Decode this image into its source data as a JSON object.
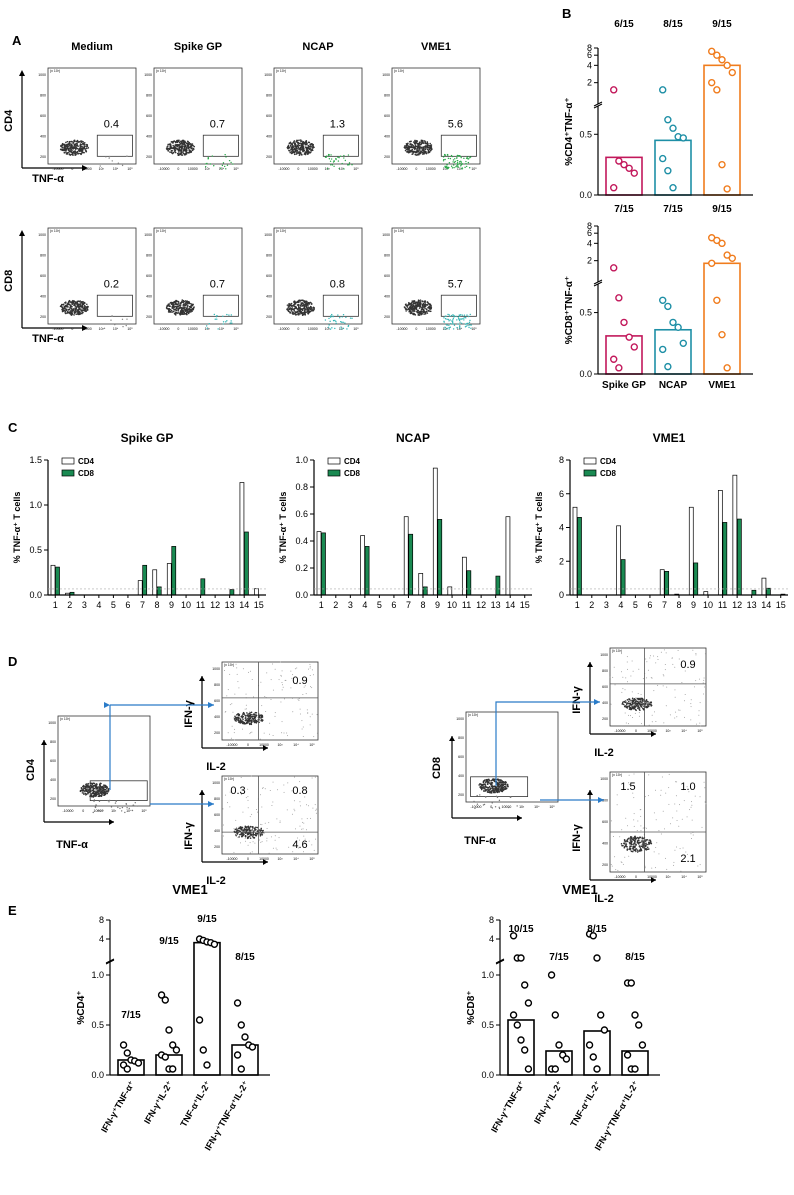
{
  "panel_letters": {
    "a": "A",
    "b": "B",
    "c": "C",
    "d": "D",
    "e": "E"
  },
  "colors": {
    "spike": "#C2185B",
    "ncap": "#1E8FA6",
    "vme1": "#F07C1D",
    "cd8_bar": "#1A8A52",
    "cd4_bar": "#ffffff",
    "gate": "#333333",
    "green_dots": "#2BA84A",
    "teal_dots": "#33B5B5",
    "arrow": "#2A7BC8"
  },
  "panel_a": {
    "conditions": [
      "Medium",
      "Spike GP",
      "NCAP",
      "VME1"
    ],
    "row_cd4": {
      "ylabel": "CD4",
      "xlabel": "TNF-α",
      "values": [
        "0.4",
        "0.7",
        "1.3",
        "5.6"
      ]
    },
    "row_cd8": {
      "ylabel": "CD8",
      "xlabel": "TNF-α",
      "values": [
        "0.2",
        "0.7",
        "0.8",
        "5.7"
      ]
    },
    "x_ticks": [
      "-10000",
      "0",
      "10000",
      "10³",
      "10⁴",
      "10⁵"
    ],
    "y_ticks_cd4": [
      "1000",
      "800",
      "600",
      "400",
      "200"
    ],
    "y_ticks_cd8": [
      "1000",
      "800",
      "600",
      "400",
      "200"
    ],
    "y_exp": "(x 10³)"
  },
  "chart_data": [
    {
      "type": "scatter",
      "panel": "B-top",
      "ylabel": "%CD4⁺TNF-α⁺",
      "categories": [
        "Spike GP",
        "NCAP",
        "VME1"
      ],
      "fractions": [
        "6/15",
        "8/15",
        "9/15"
      ],
      "bar_heights": [
        0.31,
        0.45,
        4.0
      ],
      "points": [
        [
          1.5,
          0.28,
          0.25,
          0.22,
          0.18,
          0.06
        ],
        [
          1.5,
          0.62,
          0.55,
          0.48,
          0.47,
          0.3,
          0.2,
          0.06
        ],
        [
          7,
          6,
          5,
          4,
          3,
          2,
          1.5,
          0.25,
          0.05
        ]
      ],
      "y_ticks": [
        "0.0",
        "0.5",
        "1.0",
        "2",
        "4",
        "6",
        "8"
      ],
      "ylim_lower": [
        0,
        1.0
      ],
      "ylim_upper": [
        1,
        8
      ]
    },
    {
      "type": "scatter",
      "panel": "B-bottom",
      "ylabel": "%CD8⁺TNF-α⁺",
      "categories": [
        "Spike GP",
        "NCAP",
        "VME1"
      ],
      "fractions": [
        "7/15",
        "7/15",
        "9/15"
      ],
      "bar_heights": [
        0.31,
        0.36,
        1.8
      ],
      "points": [
        [
          1.5,
          0.62,
          0.42,
          0.3,
          0.22,
          0.12,
          0.05
        ],
        [
          0.6,
          0.55,
          0.42,
          0.38,
          0.25,
          0.2,
          0.06
        ],
        [
          5,
          4.5,
          4,
          2.5,
          2.2,
          1.8,
          0.6,
          0.32,
          0.05
        ]
      ],
      "y_ticks": [
        "0.0",
        "0.5",
        "1.0",
        "2",
        "4",
        "6",
        "8"
      ],
      "ylim_lower": [
        0,
        1.0
      ],
      "ylim_upper": [
        1,
        8
      ]
    },
    {
      "type": "bar",
      "panel": "C-SpikeGP",
      "title": "Spike GP",
      "ylabel": "% TNF-α⁺ T cells",
      "categories": [
        "1",
        "2",
        "3",
        "4",
        "5",
        "6",
        "7",
        "8",
        "9",
        "10",
        "11",
        "12",
        "13",
        "14",
        "15"
      ],
      "series": [
        {
          "name": "CD4",
          "values": [
            0.33,
            0.02,
            0,
            0,
            0,
            0,
            0.16,
            0.28,
            0.35,
            0,
            0,
            0,
            0,
            1.25,
            0.07
          ]
        },
        {
          "name": "CD8",
          "values": [
            0.31,
            0.03,
            0,
            0,
            0,
            0,
            0.33,
            0.09,
            0.54,
            0,
            0.18,
            0,
            0.06,
            0.7,
            0
          ]
        }
      ],
      "y_ticks": [
        "0.0",
        "0.5",
        "1.0",
        "1.5"
      ],
      "ylim": [
        0,
        1.5
      ]
    },
    {
      "type": "bar",
      "panel": "C-NCAP",
      "title": "NCAP",
      "ylabel": "% TNF-α⁺ T cells",
      "categories": [
        "1",
        "2",
        "3",
        "4",
        "5",
        "6",
        "7",
        "8",
        "9",
        "10",
        "11",
        "12",
        "13",
        "14",
        "15"
      ],
      "series": [
        {
          "name": "CD4",
          "values": [
            0.47,
            0,
            0,
            0.44,
            0,
            0,
            0.58,
            0.16,
            0.94,
            0.06,
            0.28,
            0,
            0,
            0.58,
            0
          ]
        },
        {
          "name": "CD8",
          "values": [
            0.46,
            0,
            0,
            0.36,
            0,
            0,
            0.45,
            0.06,
            0.56,
            0,
            0.18,
            0,
            0.14,
            0,
            0
          ]
        }
      ],
      "y_ticks": [
        "0.0",
        "0.2",
        "0.4",
        "0.6",
        "0.8",
        "1.0"
      ],
      "ylim": [
        0,
        1.0
      ]
    },
    {
      "type": "bar",
      "panel": "C-VME1",
      "title": "VME1",
      "ylabel": "% TNF-α⁺ T cells",
      "categories": [
        "1",
        "2",
        "3",
        "4",
        "5",
        "6",
        "7",
        "8",
        "9",
        "10",
        "11",
        "12",
        "13",
        "14",
        "15"
      ],
      "series": [
        {
          "name": "CD4",
          "values": [
            5.2,
            0,
            0,
            4.1,
            0,
            0,
            1.5,
            0.05,
            5.2,
            0.2,
            6.2,
            7.1,
            0,
            1.0,
            0
          ]
        },
        {
          "name": "CD8",
          "values": [
            4.6,
            0,
            0,
            2.1,
            0,
            0,
            1.4,
            0,
            1.9,
            0,
            4.3,
            4.5,
            0.28,
            0.4,
            0.05
          ]
        }
      ],
      "y_ticks": [
        "0",
        "2",
        "4",
        "6",
        "8"
      ],
      "ylim": [
        0,
        8
      ]
    },
    {
      "type": "scatter",
      "panel": "E-CD4",
      "title": "VME1",
      "ylabel": "%CD4⁺",
      "categories": [
        "IFN-γ⁺TNF-α⁺",
        "IFN-γ⁺IL-2⁺",
        "TNF-α⁺IL-2⁺",
        "IFN-γ⁺TNF-α⁺IL-2⁺"
      ],
      "fractions": [
        "7/15",
        "9/15",
        "9/15",
        "8/15"
      ],
      "bar_heights": [
        0.15,
        0.2,
        3.5,
        0.3
      ],
      "points": [
        [
          0.3,
          0.22,
          0.15,
          0.14,
          0.12,
          0.1,
          0.06
        ],
        [
          0.8,
          0.75,
          0.45,
          0.3,
          0.25,
          0.2,
          0.18,
          0.06,
          0.06
        ],
        [
          4,
          3.8,
          3.6,
          3.5,
          3.3,
          0.55,
          0.25,
          0.1
        ],
        [
          0.72,
          0.5,
          0.38,
          0.3,
          0.28,
          0.2,
          0.06
        ]
      ],
      "y_ticks": [
        "0.0",
        "0.5",
        "1.0",
        "4",
        "8"
      ],
      "ylim_lower": [
        0,
        1.1
      ],
      "ylim_upper": [
        2,
        8
      ]
    },
    {
      "type": "scatter",
      "panel": "E-CD8",
      "title": "VME1",
      "ylabel": "%CD8⁺",
      "categories": [
        "IFN-γ⁺TNF-α⁺",
        "IFN-γ⁺IL-2⁺",
        "TNF-α⁺IL-2⁺",
        "IFN-γ⁺TNF-α⁺IL-2⁺"
      ],
      "fractions": [
        "10/15",
        "7/15",
        "8/15",
        "8/15"
      ],
      "bar_heights": [
        0.55,
        0.24,
        0.44,
        0.24
      ],
      "points": [
        [
          4.5,
          1.3,
          1.2,
          0.9,
          0.72,
          0.6,
          0.5,
          0.35,
          0.25,
          0.06
        ],
        [
          1.0,
          0.6,
          0.3,
          0.2,
          0.16,
          0.06,
          0.06
        ],
        [
          4.8,
          4.5,
          1.2,
          0.6,
          0.45,
          0.3,
          0.18,
          0.06
        ],
        [
          0.92,
          0.92,
          0.6,
          0.5,
          0.3,
          0.2,
          0.06,
          0.06
        ]
      ],
      "y_ticks": [
        "0.0",
        "0.5",
        "1.0",
        "4",
        "8"
      ],
      "ylim_lower": [
        0,
        1.1
      ],
      "ylim_upper": [
        2,
        8
      ]
    }
  ],
  "legend": {
    "cd4": "CD4",
    "cd8": "CD8"
  },
  "x_axis_title_c": "",
  "panel_d": {
    "left": {
      "gate_ylabel": "CD4",
      "gate_xlabel": "TNF-α",
      "top_ylabel": "IFN-γ",
      "top_xlabel": "IL-2",
      "top_value": "0.9",
      "bot_ylabel": "IFN-γ",
      "bot_xlabel": "IL-2",
      "bot_values": [
        "0.3",
        "0.8",
        "4.6"
      ]
    },
    "right": {
      "gate_ylabel": "CD8",
      "gate_xlabel": "TNF-α",
      "top_ylabel": "IFN-γ",
      "top_xlabel": "IL-2",
      "top_value": "0.9",
      "bot_ylabel": "IFN-γ",
      "bot_xlabel": "IL-2",
      "bot_values": [
        "1.5",
        "1.0",
        "2.1"
      ]
    }
  }
}
